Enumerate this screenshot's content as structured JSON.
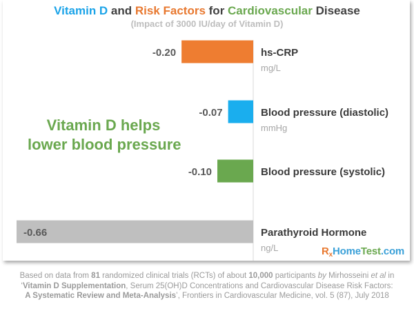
{
  "title": {
    "part1": "Vitamin D",
    "part2": " and ",
    "part3": "Risk Factors",
    "part4": " for ",
    "part5": "Cardiovascular",
    "part6": " Disease",
    "colors": {
      "vitamin": "#1aa3e8",
      "risk": "#e8782f",
      "cardio": "#6aa84f",
      "plain": "#404040"
    }
  },
  "subtitle": "(Impact of 3000 IU/day of Vitamin D)",
  "callout": {
    "line1": "Vitamin D helps",
    "line2": "lower blood pressure"
  },
  "chart_data": {
    "type": "bar",
    "orientation": "horizontal",
    "categories": [
      "hs-CRP",
      "Blood pressure (diastolic)",
      "Blood pressure (systolic)",
      "Parathyroid Hormone"
    ],
    "units": [
      "mg/L",
      "mmHg",
      "",
      "ng/L"
    ],
    "values": [
      -0.2,
      -0.07,
      -0.1,
      -0.66
    ],
    "value_labels": [
      "-0.20",
      "-0.07",
      "-0.10",
      "-0.66"
    ],
    "colors": [
      "#ee7d31",
      "#1aaeee",
      "#6aa84f",
      "#bfbfbf"
    ],
    "grid": false,
    "legend": "none"
  },
  "brand": {
    "rx": "R",
    "rx_sub": "x",
    "home": "Home",
    "test": "Test",
    "dotcom": ".com"
  },
  "footer": {
    "l1a": "Based on data from ",
    "l1b": "81",
    "l1c": " randomized clinical trials (RCTs) of about ",
    "l1d": "10,000",
    "l1e": " participants ",
    "l1f": "by",
    "l1g": " Mirhosseini ",
    "l1h": "et al",
    "l1i": " in",
    "l2a": "‘",
    "l2b": "Vitamin D Supplementation",
    "l2c": ", Serum 25(OH)D Concentrations and Cardiovascular Disease Risk Factors:",
    "l3a": "A Systematic Review and Meta-Analysis",
    "l3b": "’, Frontiers in Cardiovascular Medicine, vol. 5 (87), July 2018"
  }
}
